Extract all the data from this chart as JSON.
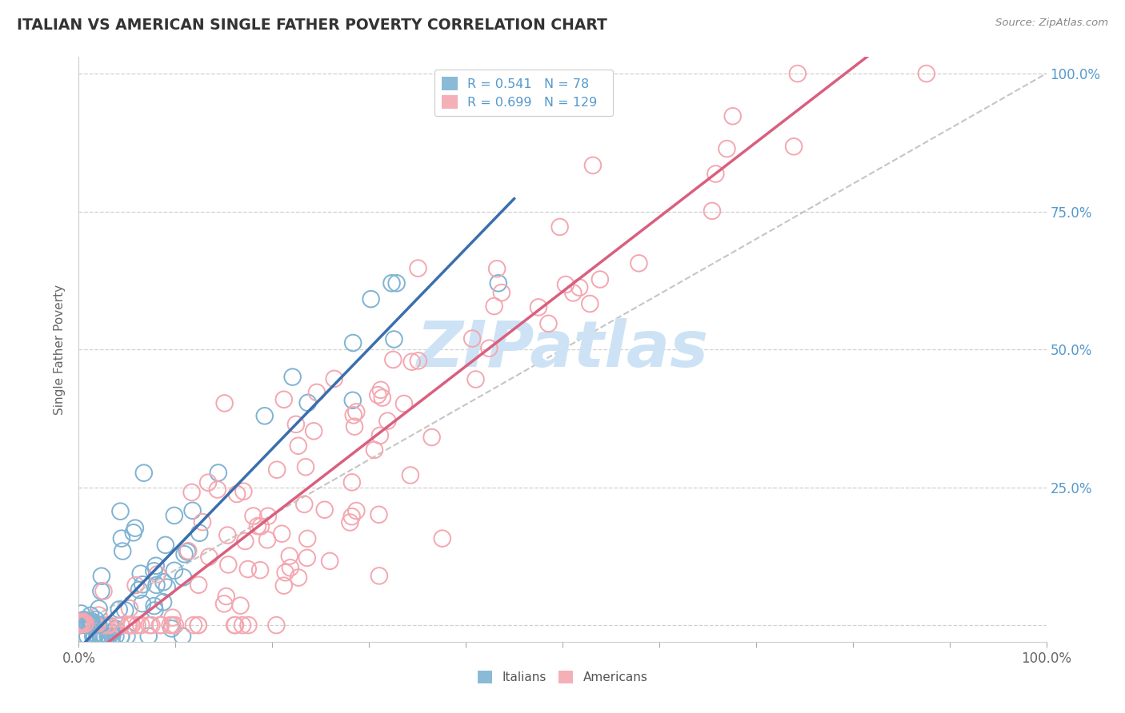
{
  "title": "ITALIAN VS AMERICAN SINGLE FATHER POVERTY CORRELATION CHART",
  "source": "Source: ZipAtlas.com",
  "ylabel": "Single Father Poverty",
  "xlim": [
    0,
    1
  ],
  "ylim": [
    0,
    1
  ],
  "xticks": [
    0.0,
    0.1,
    0.2,
    0.3,
    0.4,
    0.5,
    0.6,
    0.7,
    0.8,
    0.9,
    1.0
  ],
  "xtick_labels": [
    "0.0%",
    "",
    "",
    "",
    "",
    "",
    "",
    "",
    "",
    "",
    "100.0%"
  ],
  "yticks": [
    0.0,
    0.25,
    0.5,
    0.75,
    1.0
  ],
  "right_ytick_labels": [
    "",
    "25.0%",
    "50.0%",
    "75.0%",
    "100.0%"
  ],
  "italian_R": 0.541,
  "italian_N": 78,
  "american_R": 0.699,
  "american_N": 129,
  "italian_color": "#7fb3d3",
  "american_color": "#f4a7b0",
  "italian_line_color": "#3a6fad",
  "american_line_color": "#d95f7f",
  "diagonal_color": "#bbbbbb",
  "watermark_color": "#cde3f5",
  "background_color": "#ffffff",
  "grid_color": "#d0d0d0",
  "title_color": "#333333",
  "right_tick_color": "#5599cc",
  "source_color": "#888888"
}
